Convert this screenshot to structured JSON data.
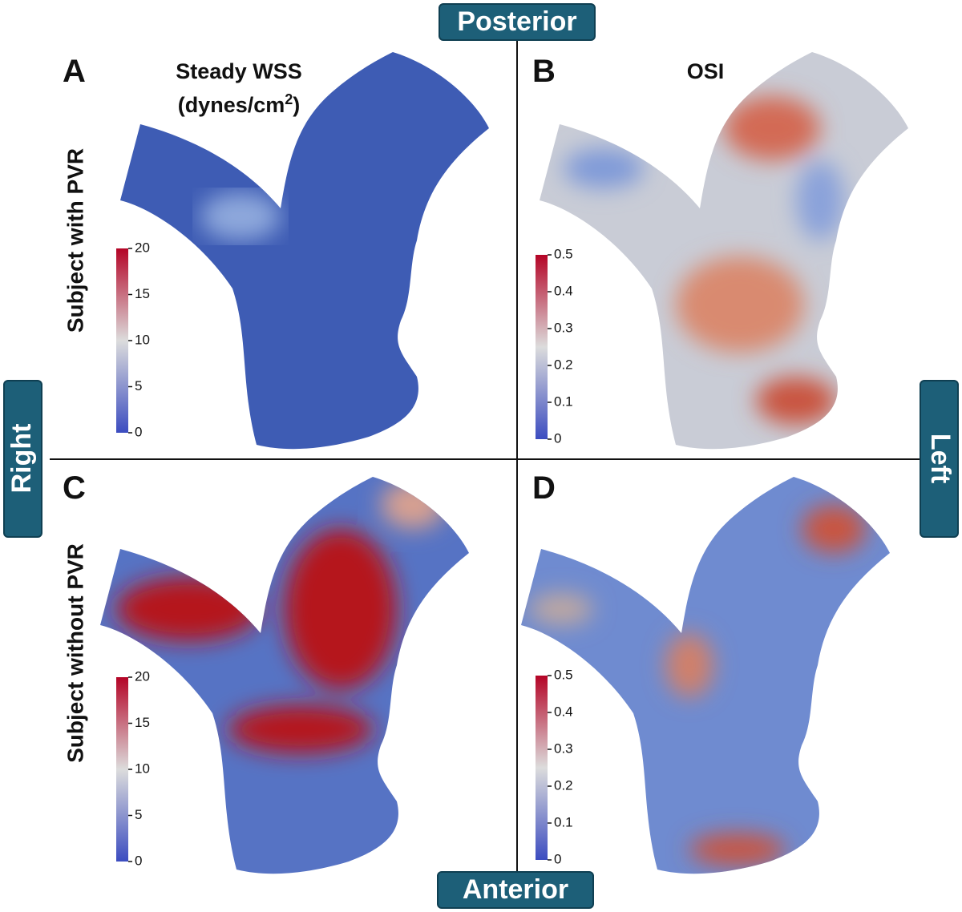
{
  "orientation": {
    "top": "Posterior",
    "bottom": "Anterior",
    "left": "Right",
    "right": "Left"
  },
  "rows": [
    "Subject with PVR",
    "Subject without PVR"
  ],
  "panels": [
    "A",
    "B",
    "C",
    "D"
  ],
  "columns": [
    {
      "title": "Steady WSS",
      "unit": "(dynes/cm",
      "unit_sup": "2",
      "unit_end": ")"
    },
    {
      "title": "OSI"
    }
  ],
  "colorbars": [
    {
      "range": [
        0,
        20
      ],
      "ticks": [
        0,
        5,
        10,
        15,
        20
      ]
    },
    {
      "range": [
        0,
        0.5
      ],
      "ticks": [
        0,
        0.1,
        0.2,
        0.3,
        0.4,
        0.5
      ]
    }
  ]
}
